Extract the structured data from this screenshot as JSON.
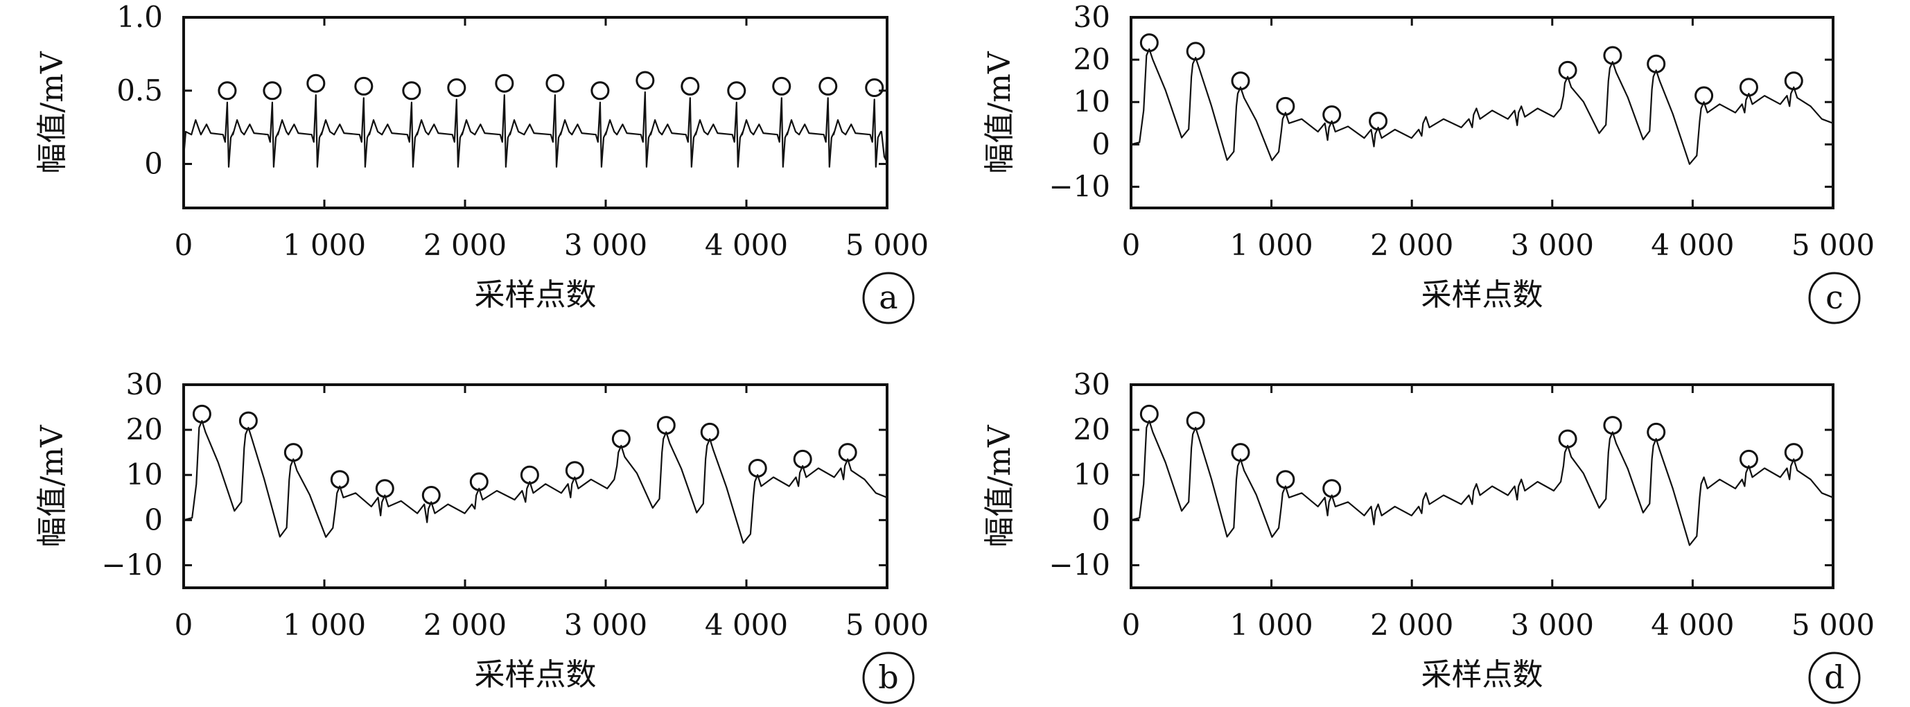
{
  "chart_data": [
    {
      "panel": "a",
      "type": "line",
      "xlabel": "采样点数",
      "ylabel": "幅值/mV",
      "xlim": [
        0,
        5000
      ],
      "ylim": [
        -0.3,
        1.0
      ],
      "xticks": [
        0,
        1000,
        2000,
        3000,
        4000,
        5000
      ],
      "xtick_labels": [
        "0",
        "1 000",
        "2 000",
        "3 000",
        "4 000",
        "5 000"
      ],
      "yticks": [
        0,
        0.5,
        1.0
      ],
      "ytick_labels": [
        "0",
        "0.5",
        "1.0"
      ],
      "markers": [
        {
          "x": 310,
          "y": 0.5
        },
        {
          "x": 630,
          "y": 0.5
        },
        {
          "x": 940,
          "y": 0.55
        },
        {
          "x": 1280,
          "y": 0.53
        },
        {
          "x": 1620,
          "y": 0.5
        },
        {
          "x": 1940,
          "y": 0.52
        },
        {
          "x": 2280,
          "y": 0.55
        },
        {
          "x": 2640,
          "y": 0.55
        },
        {
          "x": 2960,
          "y": 0.5
        },
        {
          "x": 3280,
          "y": 0.57
        },
        {
          "x": 3600,
          "y": 0.53
        },
        {
          "x": 3930,
          "y": 0.5
        },
        {
          "x": 4250,
          "y": 0.53
        },
        {
          "x": 4580,
          "y": 0.53
        },
        {
          "x": 4910,
          "y": 0.52
        }
      ]
    },
    {
      "panel": "b",
      "type": "line",
      "xlabel": "采样点数",
      "ylabel": "幅值/mV",
      "xlim": [
        0,
        5000
      ],
      "ylim": [
        -15,
        30
      ],
      "xticks": [
        0,
        1000,
        2000,
        3000,
        4000,
        5000
      ],
      "xtick_labels": [
        "0",
        "1 000",
        "2 000",
        "3 000",
        "4 000",
        "5 000"
      ],
      "yticks": [
        -10,
        0,
        10,
        20,
        30
      ],
      "ytick_labels": [
        "−10",
        "0",
        "10",
        "20",
        "30"
      ],
      "markers": [
        {
          "x": 130,
          "y": 23.5
        },
        {
          "x": 460,
          "y": 22
        },
        {
          "x": 780,
          "y": 15
        },
        {
          "x": 1110,
          "y": 9
        },
        {
          "x": 1430,
          "y": 7
        },
        {
          "x": 1760,
          "y": 5.5
        },
        {
          "x": 2100,
          "y": 8.5
        },
        {
          "x": 2460,
          "y": 10
        },
        {
          "x": 2780,
          "y": 11
        },
        {
          "x": 3110,
          "y": 18
        },
        {
          "x": 3430,
          "y": 21
        },
        {
          "x": 3740,
          "y": 19.5
        },
        {
          "x": 4080,
          "y": 11.5
        },
        {
          "x": 4400,
          "y": 13.5
        },
        {
          "x": 4720,
          "y": 15
        }
      ]
    },
    {
      "panel": "c",
      "type": "line",
      "xlabel": "采样点数",
      "ylabel": "幅值/mV",
      "xlim": [
        0,
        5000
      ],
      "ylim": [
        -15,
        30
      ],
      "xticks": [
        0,
        1000,
        2000,
        3000,
        4000,
        5000
      ],
      "xtick_labels": [
        "0",
        "1 000",
        "2 000",
        "3 000",
        "4 000",
        "5 000"
      ],
      "yticks": [
        -10,
        0,
        10,
        20,
        30
      ],
      "ytick_labels": [
        "−10",
        "0",
        "10",
        "20",
        "30"
      ],
      "markers": [
        {
          "x": 130,
          "y": 24
        },
        {
          "x": 460,
          "y": 22
        },
        {
          "x": 780,
          "y": 15
        },
        {
          "x": 1100,
          "y": 9
        },
        {
          "x": 1430,
          "y": 7
        },
        {
          "x": 1760,
          "y": 5.5
        },
        {
          "x": 3110,
          "y": 17.5
        },
        {
          "x": 3430,
          "y": 21
        },
        {
          "x": 3740,
          "y": 19
        },
        {
          "x": 4080,
          "y": 11.5
        },
        {
          "x": 4400,
          "y": 13.5
        },
        {
          "x": 4720,
          "y": 15
        }
      ]
    },
    {
      "panel": "d",
      "type": "line",
      "xlabel": "采样点数",
      "ylabel": "幅值/mV",
      "xlim": [
        0,
        5000
      ],
      "ylim": [
        -15,
        30
      ],
      "xticks": [
        0,
        1000,
        2000,
        3000,
        4000,
        5000
      ],
      "xtick_labels": [
        "0",
        "1 000",
        "2 000",
        "3 000",
        "4 000",
        "5 000"
      ],
      "yticks": [
        -10,
        0,
        10,
        20,
        30
      ],
      "ytick_labels": [
        "−10",
        "0",
        "10",
        "20",
        "30"
      ],
      "markers": [
        {
          "x": 130,
          "y": 23.5
        },
        {
          "x": 460,
          "y": 22
        },
        {
          "x": 780,
          "y": 15
        },
        {
          "x": 1100,
          "y": 9
        },
        {
          "x": 1430,
          "y": 7
        },
        {
          "x": 3110,
          "y": 18
        },
        {
          "x": 3430,
          "y": 21
        },
        {
          "x": 3740,
          "y": 19.5
        },
        {
          "x": 4400,
          "y": 13.5
        },
        {
          "x": 4720,
          "y": 15
        }
      ]
    }
  ]
}
